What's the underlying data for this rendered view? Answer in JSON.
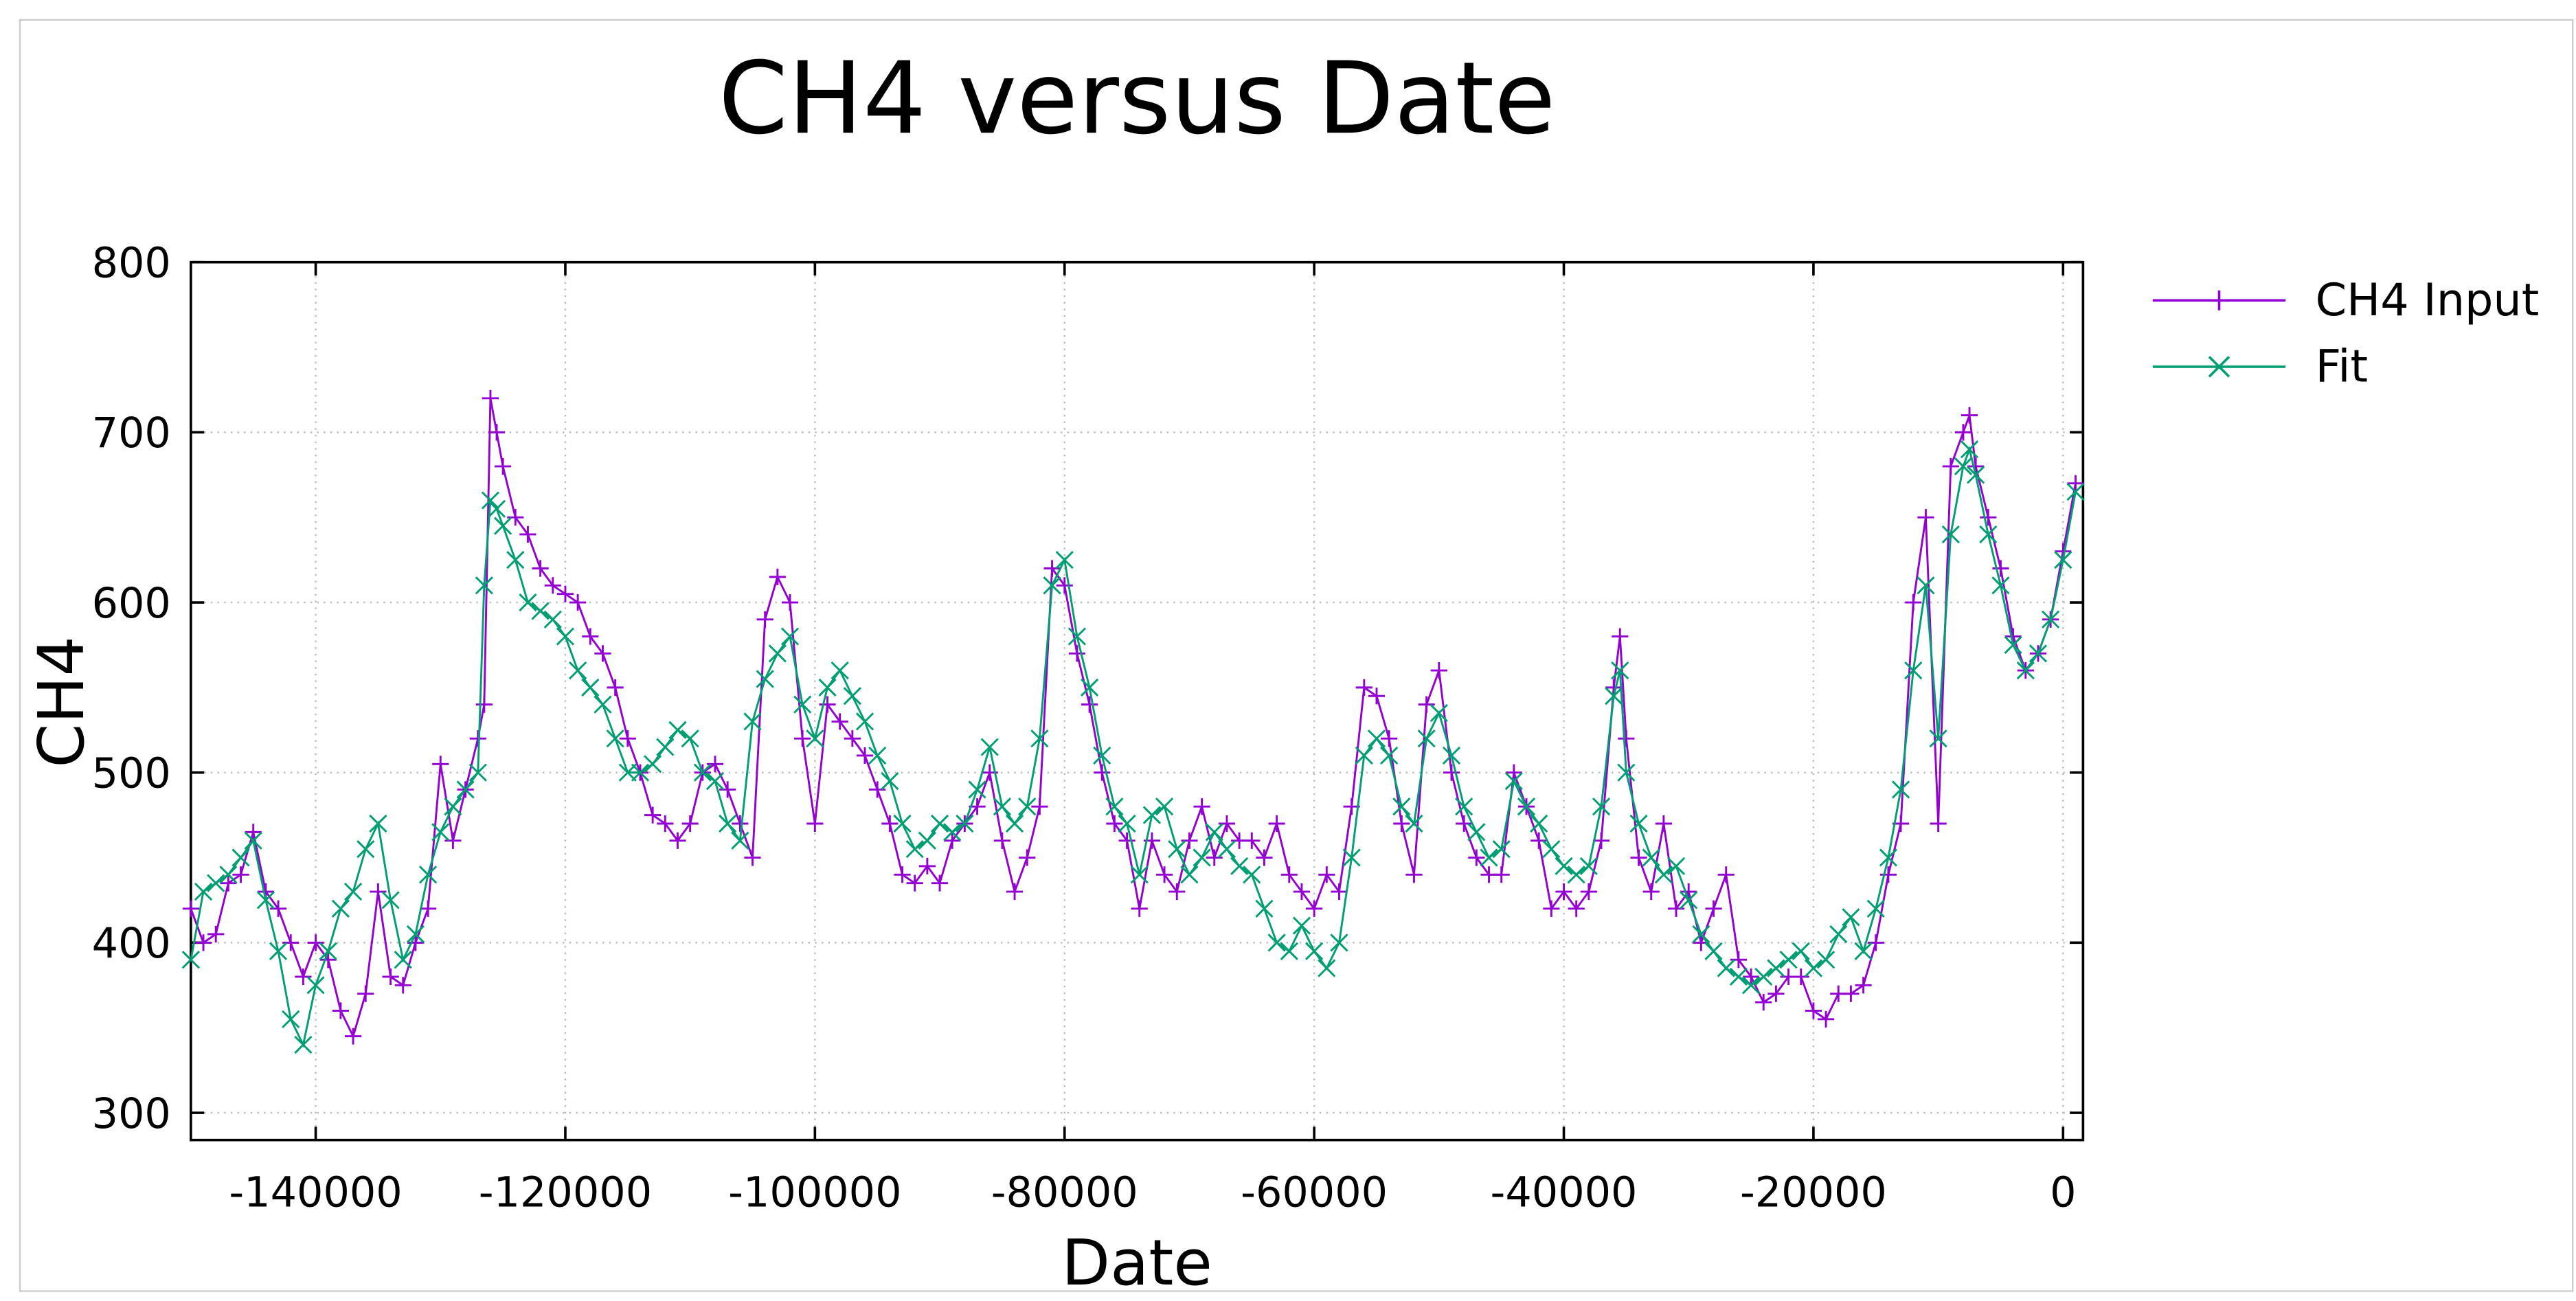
{
  "chart_data": {
    "type": "line",
    "title": "CH4 versus Date",
    "x_label": "Date",
    "y_label": "CH4",
    "x": [
      -150000,
      -149000,
      -148000,
      -147000,
      -146000,
      -145000,
      -144000,
      -143000,
      -142000,
      -141000,
      -140000,
      -139000,
      -138000,
      -137000,
      -136000,
      -135000,
      -134000,
      -133000,
      -132000,
      -131000,
      -130000,
      -129000,
      -128000,
      -127000,
      -126500,
      -126000,
      -125500,
      -125000,
      -124000,
      -123000,
      -122000,
      -121000,
      -120000,
      -119000,
      -118000,
      -117000,
      -116000,
      -115000,
      -114000,
      -113000,
      -112000,
      -111000,
      -110000,
      -109000,
      -108000,
      -107000,
      -106000,
      -105000,
      -104000,
      -103000,
      -102000,
      -101000,
      -100000,
      -99000,
      -98000,
      -97000,
      -96000,
      -95000,
      -94000,
      -93000,
      -92000,
      -91000,
      -90000,
      -89000,
      -88000,
      -87000,
      -86000,
      -85000,
      -84000,
      -83000,
      -82000,
      -81000,
      -80000,
      -79000,
      -78000,
      -77000,
      -76000,
      -75000,
      -74000,
      -73000,
      -72000,
      -71000,
      -70000,
      -69000,
      -68000,
      -67000,
      -66000,
      -65000,
      -64000,
      -63000,
      -62000,
      -61000,
      -60000,
      -59000,
      -58000,
      -57000,
      -56000,
      -55000,
      -54000,
      -53000,
      -52000,
      -51000,
      -50000,
      -49000,
      -48000,
      -47000,
      -46000,
      -45000,
      -44000,
      -43000,
      -42000,
      -41000,
      -40000,
      -39000,
      -38000,
      -37000,
      -36000,
      -35500,
      -35000,
      -34000,
      -33000,
      -32000,
      -31000,
      -30000,
      -29000,
      -28000,
      -27000,
      -26000,
      -25000,
      -24000,
      -23000,
      -22000,
      -21000,
      -20000,
      -19000,
      -18000,
      -17000,
      -16000,
      -15000,
      -14000,
      -13000,
      -12000,
      -11000,
      -10000,
      -9000,
      -8000,
      -7500,
      -7000,
      -6000,
      -5000,
      -4000,
      -3000,
      -2000,
      -1000,
      0,
      1000
    ],
    "series": [
      {
        "name": "CH4 Input",
        "color": "#9400d3",
        "marker": "+",
        "values": [
          420,
          400,
          405,
          435,
          440,
          465,
          430,
          420,
          400,
          380,
          400,
          390,
          360,
          345,
          370,
          430,
          380,
          375,
          400,
          420,
          505,
          460,
          490,
          520,
          540,
          720,
          700,
          680,
          650,
          640,
          620,
          610,
          605,
          600,
          580,
          570,
          550,
          520,
          500,
          475,
          470,
          460,
          470,
          500,
          505,
          490,
          470,
          450,
          590,
          615,
          600,
          520,
          470,
          540,
          530,
          520,
          510,
          490,
          470,
          440,
          435,
          445,
          435,
          460,
          470,
          480,
          500,
          460,
          430,
          450,
          480,
          620,
          610,
          570,
          540,
          500,
          470,
          460,
          420,
          460,
          440,
          430,
          460,
          480,
          450,
          470,
          460,
          460,
          450,
          470,
          440,
          430,
          420,
          440,
          430,
          480,
          550,
          545,
          520,
          470,
          440,
          540,
          560,
          500,
          470,
          450,
          440,
          440,
          500,
          480,
          460,
          420,
          430,
          420,
          430,
          460,
          550,
          580,
          520,
          450,
          430,
          470,
          420,
          430,
          400,
          420,
          440,
          390,
          380,
          365,
          370,
          380,
          380,
          360,
          355,
          370,
          370,
          375,
          400,
          440,
          470,
          600,
          650,
          470,
          680,
          700,
          710,
          680,
          650,
          620,
          580,
          560,
          570,
          590,
          630,
          670
        ]
      },
      {
        "name": "Fit",
        "color": "#009e73",
        "marker": "x",
        "values": [
          390,
          430,
          435,
          440,
          450,
          460,
          425,
          395,
          355,
          340,
          375,
          395,
          420,
          430,
          455,
          470,
          425,
          390,
          405,
          440,
          465,
          480,
          490,
          500,
          610,
          660,
          655,
          645,
          625,
          600,
          595,
          590,
          580,
          560,
          550,
          540,
          520,
          500,
          500,
          505,
          515,
          525,
          520,
          500,
          495,
          470,
          460,
          530,
          555,
          570,
          580,
          540,
          520,
          550,
          560,
          545,
          530,
          510,
          495,
          470,
          455,
          460,
          470,
          465,
          470,
          490,
          515,
          480,
          470,
          480,
          520,
          610,
          625,
          580,
          550,
          510,
          480,
          470,
          440,
          475,
          480,
          455,
          440,
          450,
          465,
          455,
          445,
          440,
          420,
          400,
          395,
          410,
          395,
          385,
          400,
          450,
          510,
          520,
          510,
          480,
          470,
          520,
          535,
          510,
          480,
          465,
          450,
          455,
          495,
          480,
          470,
          455,
          445,
          440,
          445,
          480,
          545,
          560,
          500,
          470,
          450,
          440,
          445,
          425,
          405,
          395,
          385,
          380,
          375,
          380,
          385,
          390,
          395,
          385,
          390,
          405,
          415,
          395,
          420,
          450,
          490,
          560,
          610,
          520,
          640,
          680,
          690,
          675,
          640,
          610,
          575,
          560,
          570,
          590,
          625,
          665
        ]
      }
    ],
    "xlim": [
      -150000,
      1600
    ],
    "ylim": [
      284,
      800
    ],
    "xticks": [
      -140000,
      -120000,
      -100000,
      -80000,
      -60000,
      -40000,
      -20000,
      0
    ],
    "yticks": [
      300,
      400,
      500,
      600,
      700,
      800
    ],
    "grid": true,
    "legend": "outside-top-right"
  }
}
